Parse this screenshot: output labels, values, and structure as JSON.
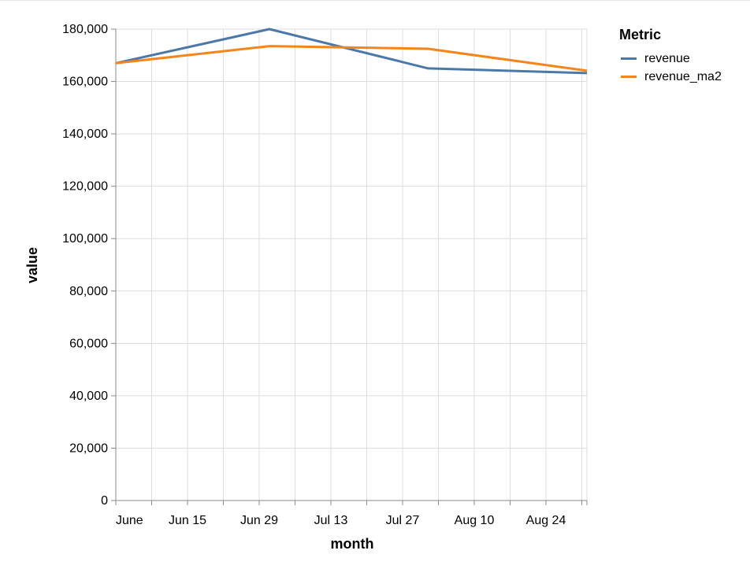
{
  "chart_data": {
    "type": "line",
    "title": "",
    "xlabel": "month",
    "ylabel": "value",
    "x": [
      "2023-06-01",
      "2023-07-01",
      "2023-08-01",
      "2023-09-01"
    ],
    "x_tick_labels": [
      "June",
      "Jun 15",
      "Jun 29",
      "Jul 13",
      "Jul 27",
      "Aug 10",
      "Aug 24"
    ],
    "y_tick_labels": [
      "0",
      "20,000",
      "40,000",
      "60,000",
      "80,000",
      "100,000",
      "120,000",
      "140,000",
      "160,000",
      "180,000"
    ],
    "ylim": [
      0,
      180000
    ],
    "grid": true,
    "legend_position": "right",
    "legend_title": "Metric",
    "series": [
      {
        "name": "revenue",
        "color": "#4c78a8",
        "values": [
          167000,
          180000,
          165000,
          163200
        ]
      },
      {
        "name": "revenue_ma2",
        "color": "#f58518",
        "values": [
          167000,
          173500,
          172500,
          164100
        ]
      }
    ]
  },
  "legend": {
    "title": "Metric",
    "items": [
      {
        "label": "revenue",
        "color": "#4c78a8"
      },
      {
        "label": "revenue_ma2",
        "color": "#f58518"
      }
    ]
  },
  "axes": {
    "x_title": "month",
    "y_title": "value"
  }
}
